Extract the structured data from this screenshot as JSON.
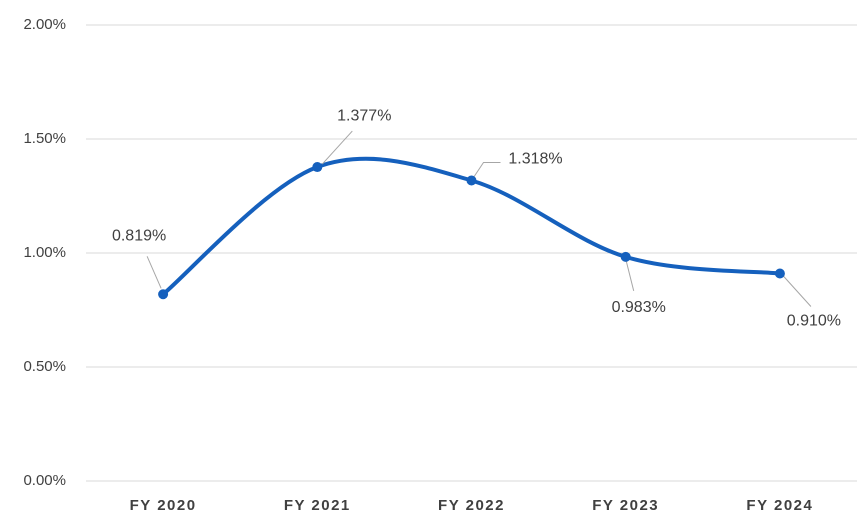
{
  "chart_data": {
    "type": "line",
    "categories": [
      "FY 2020",
      "FY 2021",
      "FY 2022",
      "FY 2023",
      "FY 2024"
    ],
    "values": [
      0.819,
      1.377,
      1.318,
      0.983,
      0.91
    ],
    "value_labels": [
      "0.819%",
      "1.377%",
      "1.318%",
      "0.983%",
      "0.910%"
    ],
    "color": "#1560bd",
    "smooth": true,
    "ylim": [
      0,
      2
    ],
    "yticks": [
      {
        "value": 0,
        "label": "0.00%"
      },
      {
        "value": 0.5,
        "label": "0.50%"
      },
      {
        "value": 1,
        "label": "1.00%"
      },
      {
        "value": 1.5,
        "label": "1.50%"
      },
      {
        "value": 2,
        "label": "2.00%"
      }
    ],
    "grid": true
  }
}
